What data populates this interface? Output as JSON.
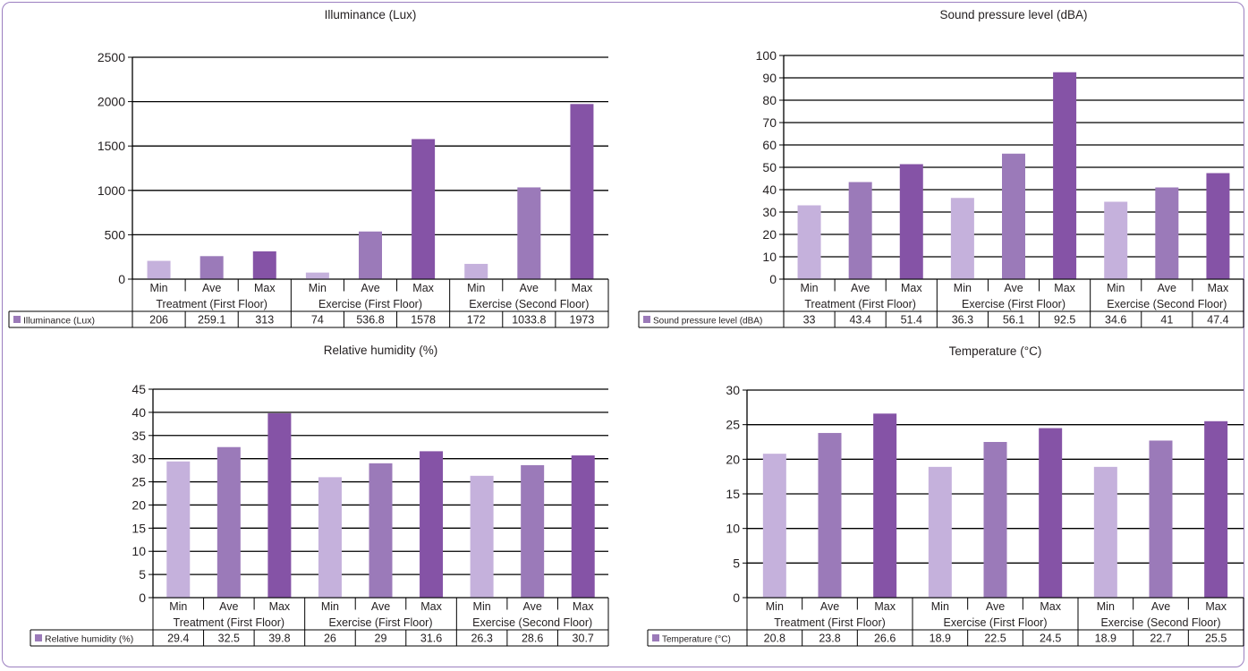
{
  "chart_data": [
    {
      "type": "bar",
      "title": "Illuminance (Lux)",
      "categories": [
        "Min",
        "Ave",
        "Max",
        "Min",
        "Ave",
        "Max",
        "Min",
        "Ave",
        "Max"
      ],
      "groups": [
        "Treatment (First Floor)",
        "Exercise (First Floor)",
        "Exercise (Second Floor)"
      ],
      "series": [
        {
          "name": "Illuminance (Lux)",
          "values": [
            206,
            259.1,
            313,
            74,
            536.8,
            1578,
            172,
            1033.8,
            1973
          ]
        }
      ],
      "table_values": [
        "206",
        "259.1",
        "313",
        "74",
        "536.8",
        "1578",
        "172",
        "1033.8",
        "1973"
      ],
      "ylim": [
        0,
        2500
      ],
      "yticks": [
        "0",
        "500",
        "1000",
        "1500",
        "2000",
        "2500"
      ],
      "grid": true,
      "legend": "data-table"
    },
    {
      "type": "bar",
      "title": "Sound pressure level (dBA)",
      "categories": [
        "Min",
        "Ave",
        "Max",
        "Min",
        "Ave",
        "Max",
        "Min",
        "Ave",
        "Max"
      ],
      "groups": [
        "Treatment (First Floor)",
        "Exercise (First Floor)",
        "Exercise (Second Floor)"
      ],
      "series": [
        {
          "name": "Sound pressure level (dBA)",
          "values": [
            33,
            43.4,
            51.4,
            36.3,
            56.1,
            92.5,
            34.6,
            41,
            47.4
          ]
        }
      ],
      "table_values": [
        "33",
        "43.4",
        "51.4",
        "36.3",
        "56.1",
        "92.5",
        "34.6",
        "41",
        "47.4"
      ],
      "ylim": [
        0,
        100
      ],
      "yticks": [
        "0",
        "10",
        "20",
        "30",
        "40",
        "50",
        "60",
        "70",
        "80",
        "90",
        "100"
      ],
      "grid": true,
      "legend": "data-table"
    },
    {
      "type": "bar",
      "title": "Relative humidity (%)",
      "categories": [
        "Min",
        "Ave",
        "Max",
        "Min",
        "Ave",
        "Max",
        "Min",
        "Ave",
        "Max"
      ],
      "groups": [
        "Treatment (First Floor)",
        "Exercise (First Floor)",
        "Exercise (Second Floor)"
      ],
      "series": [
        {
          "name": "Relative humidity (%)",
          "values": [
            29.4,
            32.5,
            39.8,
            26,
            29,
            31.6,
            26.3,
            28.6,
            30.7
          ]
        }
      ],
      "table_values": [
        "29.4",
        "32.5",
        "39.8",
        "26",
        "29",
        "31.6",
        "26.3",
        "28.6",
        "30.7"
      ],
      "ylim": [
        0,
        45
      ],
      "yticks": [
        "0",
        "5",
        "10",
        "15",
        "20",
        "25",
        "30",
        "35",
        "40",
        "45"
      ],
      "grid": true,
      "legend": "data-table"
    },
    {
      "type": "bar",
      "title": "Temperature (°C)",
      "categories": [
        "Min",
        "Ave",
        "Max",
        "Min",
        "Ave",
        "Max",
        "Min",
        "Ave",
        "Max"
      ],
      "groups": [
        "Treatment (First Floor)",
        "Exercise (First Floor)",
        "Exercise (Second Floor)"
      ],
      "series": [
        {
          "name": "Temperature (°C)",
          "values": [
            20.8,
            23.8,
            26.6,
            18.9,
            22.5,
            24.5,
            18.9,
            22.7,
            25.5
          ]
        }
      ],
      "table_values": [
        "20.8",
        "23.8",
        "26.6",
        "18.9",
        "22.5",
        "24.5",
        "18.9",
        "22.7",
        "25.5"
      ],
      "ylim": [
        0,
        30
      ],
      "yticks": [
        "0",
        "5",
        "10",
        "15",
        "20",
        "25",
        "30"
      ],
      "grid": true,
      "legend": "data-table"
    }
  ],
  "colors": {
    "min": "#c5b1dc",
    "ave": "#9b7ab9",
    "max": "#8553a6",
    "grid": "#000000",
    "frame": "#9b7fc0"
  }
}
